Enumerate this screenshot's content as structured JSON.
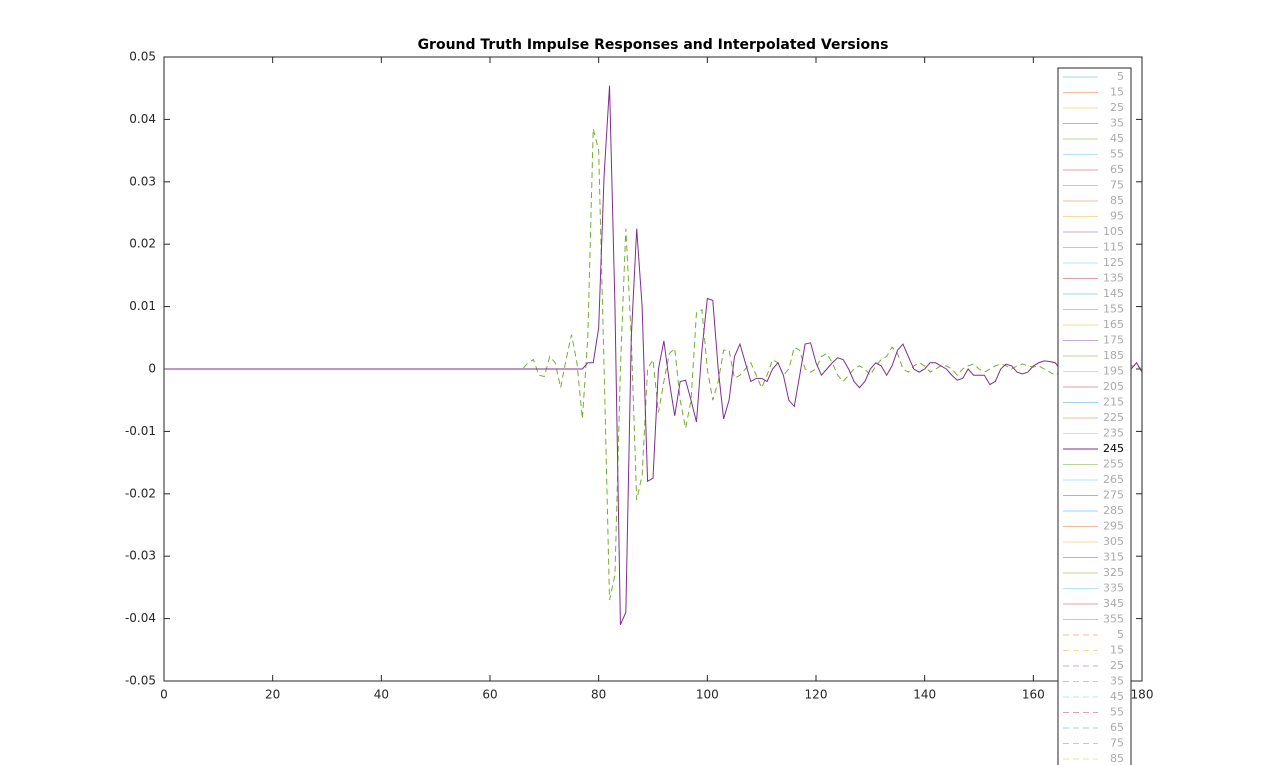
{
  "chart_data": {
    "type": "line",
    "title": "Ground Truth Impulse Responses and Interpolated Versions",
    "xlim": [
      0,
      180
    ],
    "ylim": [
      -0.05,
      0.05
    ],
    "xticks": [
      0,
      20,
      40,
      60,
      80,
      100,
      120,
      140,
      160,
      180
    ],
    "yticks": [
      -0.05,
      -0.04,
      -0.03,
      -0.02,
      -0.01,
      0,
      0.01,
      0.02,
      0.03,
      0.04,
      0.05
    ],
    "x": [
      0,
      60,
      61,
      62,
      63,
      64,
      65,
      66,
      67,
      68,
      69,
      70,
      71,
      72,
      73,
      74,
      75,
      76,
      77,
      78,
      79,
      80,
      81,
      82,
      83,
      84,
      85,
      86,
      87,
      88,
      89,
      90,
      91,
      92,
      93,
      94,
      95,
      96,
      97,
      98,
      99,
      100,
      101,
      102,
      103,
      104,
      105,
      106,
      107,
      108,
      109,
      110,
      111,
      112,
      113,
      114,
      115,
      116,
      117,
      118,
      119,
      120,
      121,
      122,
      123,
      124,
      125,
      126,
      127,
      128,
      129,
      130,
      131,
      132,
      133,
      134,
      135,
      136,
      137,
      138,
      139,
      140,
      141,
      142,
      143,
      144,
      145,
      146,
      147,
      148,
      149,
      150,
      151,
      152,
      153,
      154,
      155,
      156,
      157,
      158,
      159,
      160,
      161,
      162,
      163,
      164,
      165,
      166,
      167,
      168,
      169,
      170,
      171,
      172,
      173,
      174,
      175,
      176,
      177,
      178,
      179,
      180
    ],
    "series": [
      {
        "name": "245",
        "color": "#7e2f8e",
        "dash": false,
        "values": [
          0,
          0,
          0,
          0,
          0,
          0,
          0,
          0,
          0,
          0,
          0,
          0,
          0,
          0,
          0,
          0,
          0,
          0,
          0,
          0.001,
          0.001,
          0.0066,
          0.031,
          0.0454,
          0.01,
          -0.041,
          -0.039,
          0.005,
          0.0225,
          0.01,
          -0.018,
          -0.0175,
          0,
          0.0045,
          -0.002,
          -0.0075,
          -0.002,
          -0.0018,
          -0.005,
          -0.0085,
          0.003,
          0.0113,
          0.011,
          0,
          -0.008,
          -0.005,
          0.002,
          0.004,
          0.001,
          -0.002,
          -0.0015,
          -0.0015,
          -0.002,
          0,
          0.001,
          -0.001,
          -0.005,
          -0.006,
          -0.001,
          0.004,
          0.0042,
          0.001,
          -0.001,
          0,
          0.001,
          0.0018,
          0.0015,
          0,
          -0.002,
          -0.003,
          -0.002,
          0,
          0.001,
          0.0005,
          -0.001,
          0.0005,
          0.003,
          0.004,
          0.002,
          0,
          -0.0005,
          0,
          0.001,
          0.001,
          0.0005,
          0,
          -0.001,
          -0.0018,
          -0.0015,
          0,
          -0.001,
          -0.001,
          -0.001,
          -0.0025,
          -0.002,
          0,
          0.0008,
          0.0005,
          -0.0005,
          -0.0008,
          -0.0005,
          0.0005,
          0.001,
          0.0013,
          0.0012,
          0.001,
          0,
          -0.0005,
          0,
          0.0005,
          0.0005,
          0,
          -0.0005,
          0,
          0.0005,
          0.0008,
          0.0005,
          0,
          -0.0005,
          0,
          0.001,
          -0.0005
        ]
      },
      {
        "color": "#77ac30",
        "dash": true,
        "values": [
          0,
          0,
          0,
          0,
          0,
          0,
          0,
          0,
          0.001,
          0.0015,
          -0.001,
          -0.0012,
          0.002,
          0.001,
          -0.003,
          0.0015,
          0.0055,
          0.001,
          -0.008,
          0.005,
          0.0385,
          0.035,
          0,
          -0.037,
          -0.033,
          0,
          0.0225,
          0.005,
          -0.021,
          -0.017,
          0,
          0.0015,
          -0.007,
          -0.002,
          0.0025,
          0.0033,
          -0.005,
          -0.0095,
          -0.005,
          0.009,
          0.0095,
          0,
          -0.005,
          -0.002,
          0.003,
          0.003,
          -0.0015,
          -0.001,
          0,
          0.001,
          -0.001,
          -0.003,
          -0.001,
          0.0015,
          0.001,
          -0.001,
          0,
          0.0035,
          0.003,
          0,
          -0.0005,
          0,
          0.002,
          0.0025,
          0.001,
          -0.001,
          -0.002,
          -0.001,
          0,
          0.0005,
          0,
          -0.001,
          0.0005,
          0.0015,
          0.002,
          0.0035,
          0.0025,
          0,
          -0.0005,
          0.0005,
          0.001,
          0.0005,
          -0.0005,
          0,
          0.0005,
          0.0005,
          0,
          -0.001,
          0,
          0.0005,
          0.0008,
          0,
          -0.0005,
          0,
          0.0005,
          0.0008,
          0.0005,
          0,
          0.0005,
          0.0008,
          0.0005,
          0.0003,
          0.0005,
          0,
          -0.0005,
          -0.001,
          -0.0005,
          0,
          0.0005,
          0.0005,
          0,
          -0.0005,
          -0.0005,
          0,
          0.0005,
          0.0005,
          0,
          -0.0005,
          0,
          0.0005,
          0.0005,
          0
        ]
      }
    ],
    "legend": {
      "colors": [
        "#9fd4ec",
        "#f0bba0",
        "#f3dd9c",
        "#c7a8cf",
        "#bcd69a",
        "#b8e3f3",
        "#e0a0a8"
      ],
      "solid_before": [
        "5",
        "15",
        "25",
        "35",
        "45",
        "55",
        "65",
        "75",
        "85",
        "95",
        "105",
        "115",
        "125",
        "135",
        "145",
        "155",
        "165",
        "175",
        "185",
        "195",
        "205",
        "215",
        "225",
        "235"
      ],
      "solid_after": [
        "255",
        "265",
        "275",
        "285",
        "295",
        "305",
        "315",
        "325",
        "335",
        "345",
        "355"
      ],
      "dashed": [
        "5",
        "15",
        "25",
        "35",
        "45",
        "55",
        "65",
        "75",
        "85"
      ]
    }
  }
}
